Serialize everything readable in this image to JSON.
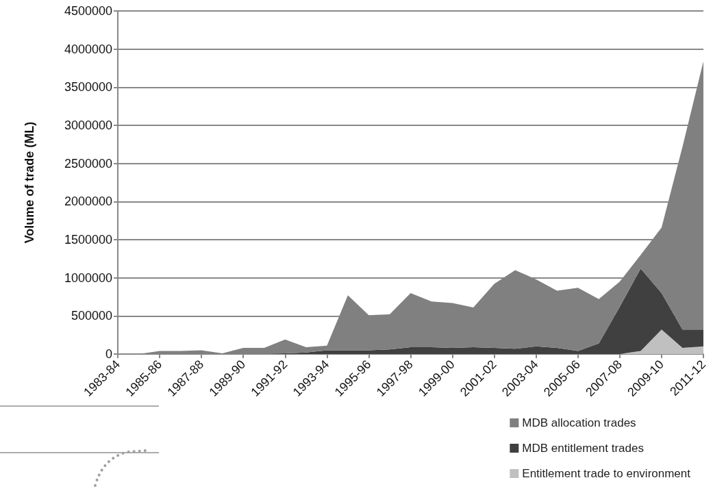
{
  "chart_data": {
    "type": "area",
    "stacked": true,
    "ylabel": "Volume of trade (ML)",
    "categories": [
      "1983-84",
      null,
      "1985-86",
      null,
      "1987-88",
      null,
      "1989-90",
      null,
      "1991-92",
      null,
      "1993-94",
      null,
      "1995-96",
      null,
      "1997-98",
      null,
      "1999-00",
      null,
      "2001-02",
      null,
      "2003-04",
      null,
      "2005-06",
      null,
      "2007-08",
      null,
      "2009-10",
      null,
      "2011-12"
    ],
    "series": [
      {
        "name": "Entitlement trade to environment",
        "color": "#c0c0c0",
        "values": [
          0,
          0,
          0,
          0,
          0,
          0,
          0,
          0,
          0,
          0,
          0,
          0,
          0,
          0,
          0,
          0,
          0,
          0,
          0,
          0,
          0,
          0,
          0,
          0,
          0,
          40000,
          320000,
          80000,
          100000
        ]
      },
      {
        "name": "MDB entitlement trades",
        "color": "#404040",
        "values": [
          0,
          0,
          0,
          0,
          0,
          0,
          0,
          0,
          10000,
          20000,
          50000,
          50000,
          50000,
          60000,
          90000,
          90000,
          80000,
          90000,
          80000,
          70000,
          100000,
          80000,
          40000,
          140000,
          620000,
          1080000,
          480000,
          240000,
          220000
        ]
      },
      {
        "name": "MDB allocation trades",
        "color": "#808080",
        "values": [
          0,
          0,
          40000,
          40000,
          50000,
          10000,
          80000,
          80000,
          180000,
          70000,
          60000,
          720000,
          460000,
          460000,
          710000,
          600000,
          590000,
          520000,
          840000,
          1030000,
          880000,
          750000,
          830000,
          580000,
          330000,
          180000,
          860000,
          2400000,
          3520000
        ]
      }
    ],
    "ylim": [
      0,
      4500000
    ],
    "yticks": [
      0,
      500000,
      1000000,
      1500000,
      2000000,
      2500000,
      3000000,
      3500000,
      4000000,
      4500000
    ],
    "grid": "y",
    "legend": "bottom",
    "marker": "none"
  }
}
